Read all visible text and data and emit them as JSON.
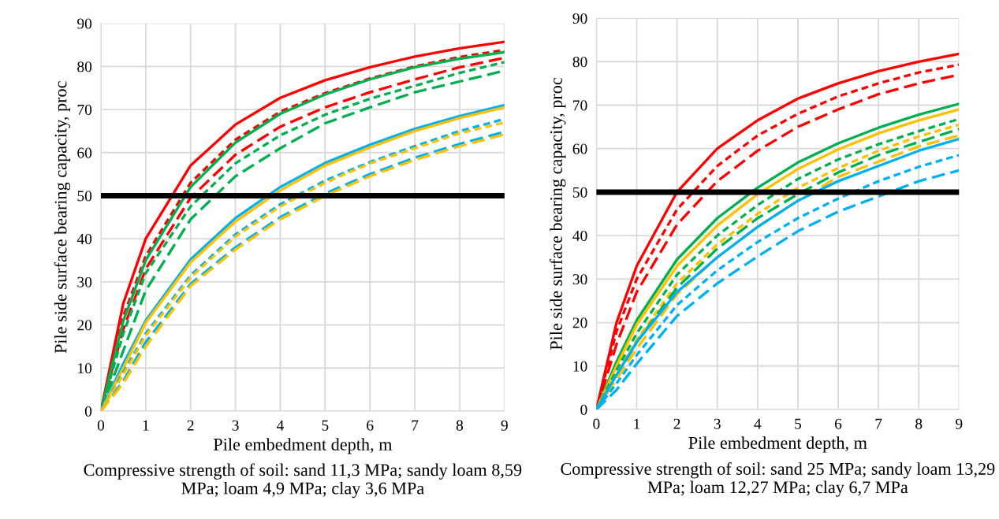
{
  "chart_data": [
    {
      "type": "line",
      "xlabel": "Pile embedment depth, m",
      "ylabel": "Pile side surface bearing capacity, proc",
      "annotations": [
        "Compressive strength of soil: sand 11,3 MPa; sandy loam 8,59 MPa; loam 4,9 MPa; clay 3,6 MPa"
      ],
      "x": [
        0,
        0.5,
        1,
        2,
        3,
        4,
        5,
        6,
        7,
        8,
        9
      ],
      "xlim": [
        0,
        9
      ],
      "xticks": [
        0,
        1,
        2,
        3,
        4,
        5,
        6,
        7,
        8,
        9
      ],
      "ylim": [
        0,
        90
      ],
      "yticks": [
        0,
        10,
        20,
        30,
        40,
        50,
        60,
        70,
        80,
        90
      ],
      "grid": true,
      "marker": "none",
      "ref_lines": [
        {
          "axis": "y",
          "value": 50,
          "color": "#000000",
          "line_style": "solid"
        }
      ],
      "series": [
        {
          "color": "#ff0000",
          "line_style": "solid",
          "values": [
            0,
            25,
            40,
            57,
            66.5,
            72.7,
            76.8,
            79.8,
            82.3,
            84.2,
            85.7
          ]
        },
        {
          "color": "#ff0000",
          "line_style": "dotted",
          "values": [
            0,
            22,
            36,
            53,
            63,
            69.5,
            73.8,
            77.2,
            80,
            82.2,
            83.8
          ]
        },
        {
          "color": "#ff0000",
          "line_style": "dashed",
          "values": [
            0,
            19,
            33,
            49.5,
            59.5,
            66,
            70.5,
            74,
            77,
            79.8,
            82
          ]
        },
        {
          "color": "#00b050",
          "line_style": "solid",
          "values": [
            0,
            21,
            35,
            52,
            62.3,
            69,
            73.5,
            77,
            79.8,
            81.8,
            83.3
          ]
        },
        {
          "color": "#00b050",
          "line_style": "dotted",
          "values": [
            0,
            18,
            32,
            47.5,
            57.5,
            64,
            68.8,
            72.5,
            75.5,
            78.5,
            81
          ]
        },
        {
          "color": "#00b050",
          "line_style": "dashed",
          "values": [
            0,
            14,
            28,
            44.5,
            54.5,
            61,
            66.8,
            70.5,
            74,
            76.5,
            79
          ]
        },
        {
          "color": "#00b0f0",
          "line_style": "solid",
          "values": [
            0,
            11,
            21,
            35.2,
            44.8,
            52,
            57.6,
            61.8,
            65.5,
            68.5,
            71
          ]
        },
        {
          "color": "#ffc000",
          "line_style": "solid",
          "values": [
            0,
            10,
            20.5,
            34.5,
            44,
            51.2,
            57,
            61.2,
            65,
            68,
            70.5
          ]
        },
        {
          "color": "#00b0f0",
          "line_style": "dotted",
          "values": [
            0,
            9,
            18,
            31.5,
            41,
            48,
            53.5,
            57.8,
            61.5,
            65,
            67.8
          ]
        },
        {
          "color": "#ffc000",
          "line_style": "dotted",
          "values": [
            0,
            8.5,
            17.5,
            31,
            40.5,
            47.5,
            53,
            57.5,
            61,
            64.5,
            67
          ]
        },
        {
          "color": "#00b0f0",
          "line_style": "dashed",
          "values": [
            0,
            7,
            16,
            29.5,
            38,
            45,
            50.5,
            55,
            58.8,
            62,
            64.8
          ]
        },
        {
          "color": "#ffc000",
          "line_style": "dashed",
          "values": [
            0,
            6.5,
            15,
            29,
            37.5,
            44.5,
            50,
            54.5,
            58.3,
            61.5,
            64.2
          ]
        }
      ]
    },
    {
      "type": "line",
      "xlabel": "Pile embedment depth, m",
      "ylabel": "Pile side surface bearing capacity, proc",
      "annotations": [
        "Compressive strength of soil: sand 25 MPa; sandy loam 13,29 MPa; loam 12,27 MPa; clay 6,7 MPa"
      ],
      "x": [
        0,
        0.5,
        1,
        2,
        3,
        4,
        5,
        6,
        7,
        8,
        9
      ],
      "xlim": [
        0,
        9
      ],
      "xticks": [
        0,
        1,
        2,
        3,
        4,
        5,
        6,
        7,
        8,
        9
      ],
      "ylim": [
        0,
        90
      ],
      "yticks": [
        0,
        10,
        20,
        30,
        40,
        50,
        60,
        70,
        80,
        90
      ],
      "grid": true,
      "marker": "none",
      "ref_lines": [
        {
          "axis": "y",
          "value": 50,
          "color": "#000000",
          "line_style": "solid"
        }
      ],
      "series": [
        {
          "color": "#ff0000",
          "line_style": "solid",
          "values": [
            0,
            20,
            33,
            50,
            60,
            66.5,
            71.5,
            75,
            77.8,
            80,
            81.8
          ]
        },
        {
          "color": "#ff0000",
          "line_style": "dotted",
          "values": [
            0,
            18,
            30,
            46,
            56,
            63,
            68,
            72,
            75,
            77.5,
            79.3
          ]
        },
        {
          "color": "#ff0000",
          "line_style": "dashed",
          "values": [
            0,
            15,
            27,
            42.5,
            52.5,
            59.5,
            65,
            69,
            72.5,
            75,
            77
          ]
        },
        {
          "color": "#00b050",
          "line_style": "solid",
          "values": [
            0,
            11,
            20.5,
            34.5,
            44,
            51,
            56.8,
            61.2,
            64.8,
            67.8,
            70.3
          ]
        },
        {
          "color": "#ffc000",
          "line_style": "solid",
          "values": [
            0,
            10,
            19.5,
            33,
            42.3,
            49.5,
            55.3,
            59.8,
            63.5,
            66.5,
            69
          ]
        },
        {
          "color": "#00b050",
          "line_style": "dotted",
          "values": [
            0,
            9,
            17.5,
            31,
            40,
            47,
            53,
            57.5,
            61,
            64,
            66.8
          ]
        },
        {
          "color": "#ffc000",
          "line_style": "dotted",
          "values": [
            0,
            8,
            16,
            29,
            38,
            45,
            51,
            55.5,
            59.5,
            62.8,
            65.5
          ]
        },
        {
          "color": "#00b050",
          "line_style": "dashed",
          "values": [
            0,
            7.5,
            15.5,
            28,
            37,
            44,
            49.5,
            54.5,
            58.5,
            61.5,
            64.5
          ]
        },
        {
          "color": "#ffc000",
          "line_style": "dashed",
          "values": [
            0,
            7,
            14,
            26.5,
            35,
            42,
            48,
            53.5,
            57,
            60.5,
            63
          ]
        },
        {
          "color": "#00b0f0",
          "line_style": "solid",
          "values": [
            0,
            8,
            15.5,
            27,
            35,
            42,
            48,
            52.5,
            56,
            59.5,
            62.2
          ]
        },
        {
          "color": "#00b0f0",
          "line_style": "dotted",
          "values": [
            0,
            6,
            12.5,
            24,
            32,
            38.5,
            44,
            48.5,
            52.5,
            55.8,
            58.5
          ]
        },
        {
          "color": "#00b0f0",
          "line_style": "dashed",
          "values": [
            0,
            4.5,
            10.5,
            21.5,
            29,
            35.2,
            41,
            45.5,
            49,
            52.5,
            55
          ]
        }
      ]
    }
  ]
}
